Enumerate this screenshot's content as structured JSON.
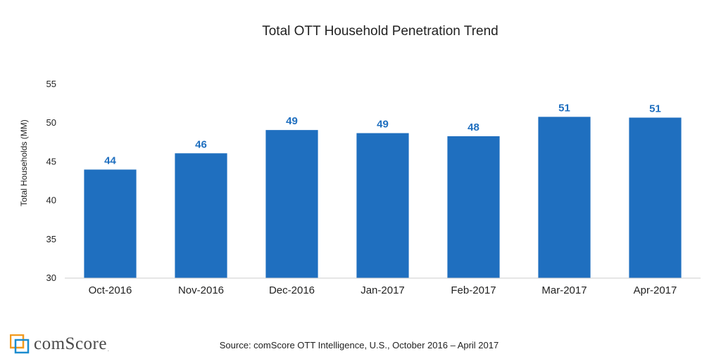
{
  "chart_data": {
    "type": "bar",
    "title": "Total OTT Household Penetration Trend",
    "xlabel": "",
    "ylabel": "Total Households (MM)",
    "ylim": [
      30,
      55
    ],
    "yticks": [
      55,
      50,
      45,
      40,
      35,
      30
    ],
    "categories": [
      "Oct-2016",
      "Nov-2016",
      "Dec-2016",
      "Jan-2017",
      "Feb-2017",
      "Mar-2017",
      "Apr-2017"
    ],
    "values": [
      44,
      46.1,
      49.1,
      48.7,
      48.3,
      50.8,
      50.7
    ],
    "data_labels": [
      "44",
      "46",
      "49",
      "49",
      "48",
      "51",
      "51"
    ],
    "grid": false,
    "legend": "none",
    "bar_color": "#1f6fbf",
    "label_color": "#1f6fbf"
  },
  "footer": {
    "source": "Source: comScore OTT Intelligence, U.S., October 2016 – April 2017",
    "brand": "comScore",
    "trademark": "."
  }
}
